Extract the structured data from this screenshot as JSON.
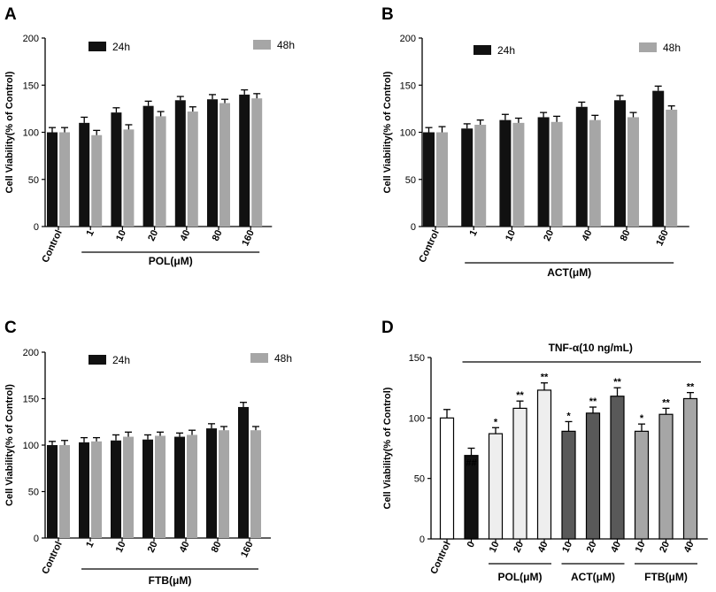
{
  "colors": {
    "h24": "#111111",
    "h48": "#a6a6a6",
    "axis": "#000000"
  },
  "chart_data": [
    {
      "panel": "A",
      "type": "bar",
      "ylabel": "Cell Viability(% of Control)",
      "ylim": [
        0,
        200
      ],
      "yticks": [
        "0",
        "50",
        "100",
        "150",
        "200"
      ],
      "categories": [
        "Control",
        "1",
        "10",
        "20",
        "40",
        "80",
        "160"
      ],
      "group_label": "POL(μM)",
      "legend": [
        "24h",
        "48h"
      ],
      "series": [
        {
          "name": "24h",
          "values": [
            100,
            110,
            121,
            128,
            134,
            135,
            140
          ],
          "errors": [
            5,
            6,
            5,
            5,
            4,
            5,
            5
          ]
        },
        {
          "name": "48h",
          "values": [
            100,
            97,
            103,
            117,
            122,
            131,
            136
          ],
          "errors": [
            5,
            5,
            5,
            5,
            5,
            4,
            5
          ]
        }
      ]
    },
    {
      "panel": "B",
      "type": "bar",
      "ylabel": "Cell Viability(% of Control)",
      "ylim": [
        0,
        200
      ],
      "yticks": [
        "0",
        "50",
        "100",
        "150",
        "200"
      ],
      "categories": [
        "Control",
        "1",
        "10",
        "20",
        "40",
        "80",
        "160"
      ],
      "group_label": "ACT(μM)",
      "legend": [
        "24h",
        "48h"
      ],
      "series": [
        {
          "name": "24h",
          "values": [
            100,
            104,
            113,
            116,
            127,
            134,
            144
          ],
          "errors": [
            5,
            5,
            6,
            5,
            5,
            5,
            5
          ]
        },
        {
          "name": "48h",
          "values": [
            100,
            108,
            110,
            111,
            113,
            116,
            124
          ],
          "errors": [
            6,
            5,
            5,
            6,
            5,
            5,
            4
          ]
        }
      ]
    },
    {
      "panel": "C",
      "type": "bar",
      "ylabel": "Cell Viability(% of Control)",
      "ylim": [
        0,
        200
      ],
      "yticks": [
        "0",
        "50",
        "100",
        "150",
        "200"
      ],
      "categories": [
        "Control",
        "1",
        "10",
        "20",
        "40",
        "80",
        "160"
      ],
      "group_label": "FTB(μM)",
      "legend": [
        "24h",
        "48h"
      ],
      "series": [
        {
          "name": "24h",
          "values": [
            100,
            103,
            105,
            106,
            109,
            118,
            141
          ],
          "errors": [
            4,
            5,
            6,
            5,
            4,
            5,
            5
          ]
        },
        {
          "name": "48h",
          "values": [
            100,
            104,
            109,
            110,
            111,
            116,
            116
          ],
          "errors": [
            5,
            4,
            5,
            4,
            5,
            4,
            4
          ]
        }
      ]
    },
    {
      "panel": "D",
      "type": "bar",
      "ylabel": "Cell Viability(% of Control)",
      "ylim": [
        0,
        150
      ],
      "yticks": [
        "0",
        "50",
        "100",
        "150"
      ],
      "treatment_label": "TNF-α(10 ng/mL)",
      "categories": [
        "Control",
        "0",
        "10",
        "20",
        "40",
        "10",
        "20",
        "40",
        "10",
        "20",
        "40"
      ],
      "groups": [
        {
          "label": "POL(μM)"
        },
        {
          "label": "ACT(μM)"
        },
        {
          "label": "FTB(μM)"
        }
      ],
      "values": [
        100,
        69,
        87,
        108,
        123,
        89,
        104,
        118,
        89,
        103,
        116
      ],
      "errors": [
        7,
        6,
        5,
        6,
        6,
        8,
        5,
        7,
        6,
        5,
        5
      ],
      "significance": [
        "",
        "##",
        "*",
        "**",
        "**",
        "*",
        "**",
        "**",
        "*",
        "**",
        "**"
      ],
      "fills": [
        "#ffffff",
        "#111111",
        "#eeeeee",
        "#eeeeee",
        "#eeeeee",
        "#595959",
        "#595959",
        "#595959",
        "#a6a6a6",
        "#a6a6a6",
        "#a6a6a6"
      ]
    }
  ]
}
